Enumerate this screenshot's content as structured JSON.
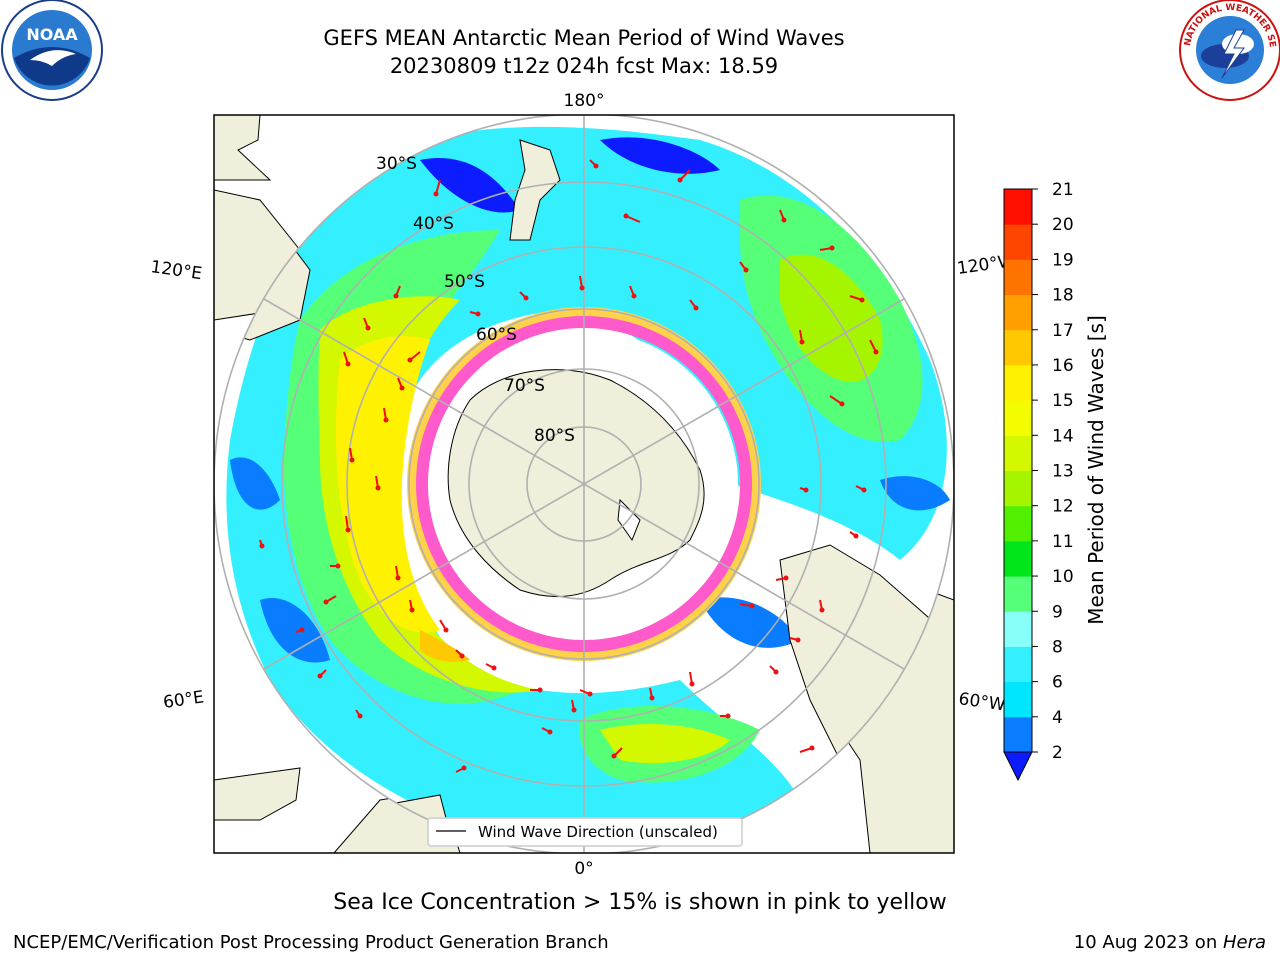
{
  "header": {
    "title_line1": "GEFS MEAN Antarctic Mean Period of Wind Waves",
    "title_line2": "20230809 t12z 024h fcst   Max: 18.59"
  },
  "logos": {
    "left": {
      "text": "NOAA",
      "icon": "noaa-logo-icon"
    },
    "right": {
      "text": "NATIONAL WEATHER SERVICE",
      "icon": "nws-logo-icon"
    }
  },
  "map": {
    "projection": "south-polar-stereographic",
    "longitude_labels": {
      "top": "180°",
      "bottom": "0°",
      "left_upper": "120°E",
      "left_lower": "60°E",
      "right_upper": "120°W",
      "right_lower": "60°W"
    },
    "latitude_labels": [
      "30°S",
      "40°S",
      "50°S",
      "60°S",
      "70°S",
      "80°S"
    ],
    "legend": "Wind Wave Direction (unscaled)",
    "colors": {
      "land": "#efefdb",
      "grid": "#b0b0b0",
      "arrow": "#ee1111",
      "ice_pink": "#ff5acb",
      "ice_yellow": "#ffd24a"
    }
  },
  "colorbar": {
    "label": "Mean Period of Wind Waves [s]",
    "ticks": [
      "2",
      "4",
      "6",
      "8",
      "9",
      "10",
      "11",
      "12",
      "13",
      "14",
      "15",
      "16",
      "17",
      "18",
      "19",
      "20",
      "21"
    ],
    "colors": [
      "#0a7cff",
      "#00e6ff",
      "#34f0ff",
      "#88fff8",
      "#55ff77",
      "#00e61a",
      "#52f000",
      "#a6f500",
      "#d4f800",
      "#f4fc00",
      "#fff200",
      "#ffc800",
      "#ffa000",
      "#ff7400",
      "#ff4600",
      "#ff0f00"
    ],
    "under_color": "#0d1cff"
  },
  "subtitle": "Sea Ice Concentration > 15% is shown in pink to yellow",
  "footer": {
    "left": "NCEP/EMC/Verification Post Processing Product Generation Branch",
    "right_date": "10 Aug 2023 on ",
    "right_host": "Hera"
  }
}
